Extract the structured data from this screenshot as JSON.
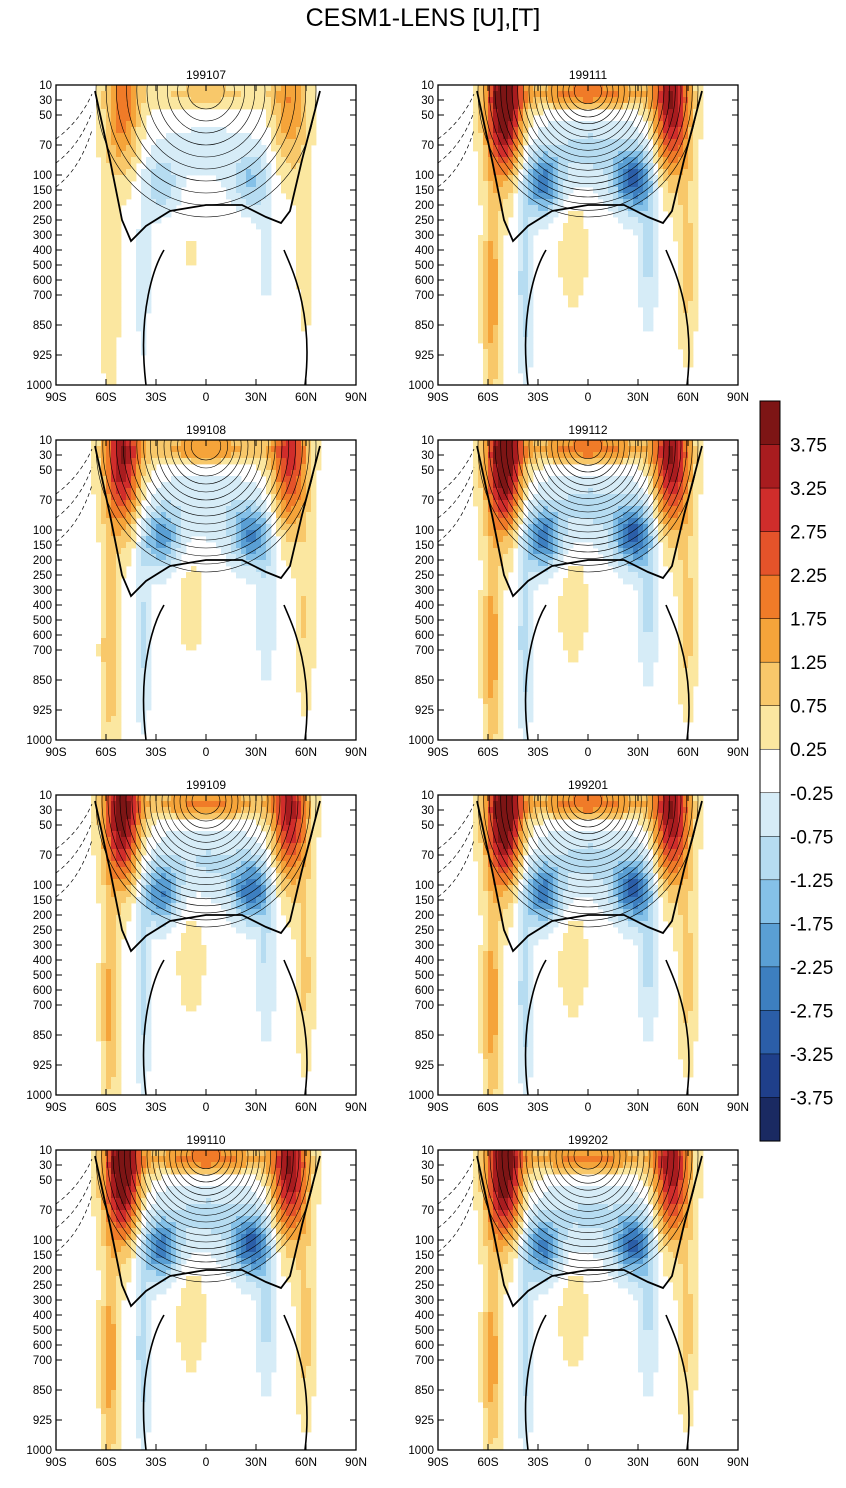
{
  "title": "CESM1-LENS [U],[T]",
  "y_tick_labels": [
    "10",
    "30",
    "50",
    "70",
    "100",
    "150",
    "200",
    "250",
    "300",
    "400",
    "500",
    "600",
    "700",
    "850",
    "925",
    "1000"
  ],
  "x_tick_labels": [
    "90S",
    "60S",
    "30S",
    "0",
    "30N",
    "60N",
    "90N"
  ],
  "colorbar": {
    "labels": [
      "3.75",
      "3.25",
      "2.75",
      "2.25",
      "1.75",
      "1.25",
      "0.75",
      "0.25",
      "-0.25",
      "-0.75",
      "-1.25",
      "-1.75",
      "-2.25",
      "-2.75",
      "-3.25",
      "-3.75"
    ],
    "colors": [
      "#1a2a62",
      "#1f3f8a",
      "#2b5ea8",
      "#3d7fc0",
      "#5a9fd4",
      "#85c1e8",
      "#b6dcf1",
      "#d6ecf7",
      "#ffffff",
      "#fbe7a0",
      "#f8c86a",
      "#f5a43a",
      "#f07b28",
      "#e4532a",
      "#d02d2b",
      "#a81c1f",
      "#7d1515"
    ]
  },
  "chart_data": [
    {
      "type": "heatmap",
      "title": "199107",
      "strength": 0.45
    },
    {
      "type": "heatmap",
      "title": "199111",
      "strength": 1.0
    },
    {
      "type": "heatmap",
      "title": "199108",
      "strength": 0.8
    },
    {
      "type": "heatmap",
      "title": "199112",
      "strength": 1.0
    },
    {
      "type": "heatmap",
      "title": "199109",
      "strength": 0.9
    },
    {
      "type": "heatmap",
      "title": "199201",
      "strength": 1.0
    },
    {
      "type": "heatmap",
      "title": "199110",
      "strength": 1.0
    },
    {
      "type": "heatmap",
      "title": "199202",
      "strength": 0.95
    }
  ]
}
